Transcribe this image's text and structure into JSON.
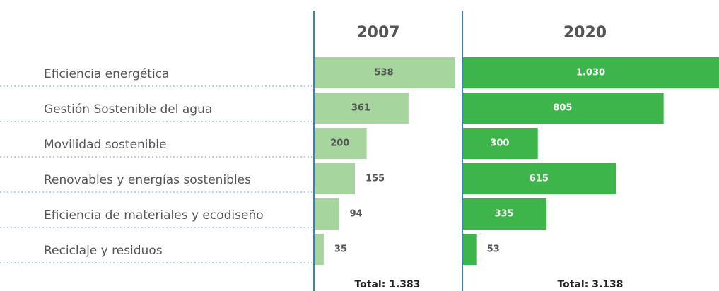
{
  "chart_data": {
    "type": "bar",
    "categories": [
      "Eficiencia energética",
      "Gestión Sostenible del agua",
      "Movilidad sostenible",
      "Renovables y energías sostenibles",
      "Eficiencia de materiales y ecodiseño",
      "Reciclaje y residuos"
    ],
    "series": [
      {
        "name": "2007",
        "color": "#a6d69e",
        "values": [
          538,
          361,
          200,
          155,
          94,
          35
        ],
        "total_label": "Total: 1.383"
      },
      {
        "name": "2020",
        "color": "#3db54a",
        "values": [
          1030,
          805,
          300,
          615,
          335,
          53
        ],
        "value_labels": [
          "1.030",
          "805",
          "300",
          "615",
          "335",
          "53"
        ],
        "total_label": "Total: 3.138"
      }
    ]
  }
}
